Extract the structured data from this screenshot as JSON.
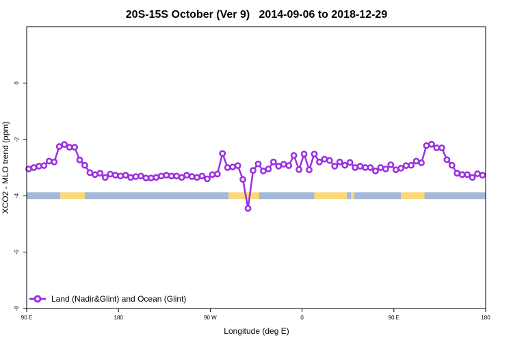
{
  "chart_data": {
    "type": "line",
    "title": "20S-15S October (Ver 9)   2014-09-06 to 2018-12-29",
    "xlabel": "Longitude (deg E)",
    "ylabel": "XCO2 - MLO trend (ppm)",
    "x_ticks": [
      {
        "value": 90,
        "label": "90 E"
      },
      {
        "value": 180,
        "label": "180"
      },
      {
        "value": 270,
        "label": "90 W"
      },
      {
        "value": 360,
        "label": "0"
      },
      {
        "value": 450,
        "label": "90 E"
      },
      {
        "value": 540,
        "label": "180"
      }
    ],
    "y_ticks": [
      {
        "value": -8,
        "label": "-8"
      },
      {
        "value": -6,
        "label": "-6"
      },
      {
        "value": -4,
        "label": "-4"
      },
      {
        "value": -2,
        "label": "-2"
      },
      {
        "value": 0,
        "label": "0"
      }
    ],
    "xlim": [
      90,
      540
    ],
    "ylim": [
      -8,
      2
    ],
    "grid": false,
    "legend": {
      "position": "bottom-left",
      "entries": [
        "Land (Nadir&Glint) and Ocean (Glint)"
      ]
    },
    "colors": {
      "series": "#9b30e0",
      "ocean": "#a4b8d8",
      "land": "#fcd87a"
    },
    "land_ocean_band": {
      "y": -4,
      "land_segments_x": [
        [
          123,
          147
        ],
        [
          288,
          318
        ],
        [
          372,
          404
        ],
        [
          408,
          411
        ],
        [
          457,
          480
        ]
      ],
      "ocean_segments_x": [
        [
          90,
          123
        ],
        [
          147,
          288
        ],
        [
          318,
          372
        ],
        [
          404,
          408
        ],
        [
          411,
          457
        ],
        [
          480,
          540
        ]
      ]
    },
    "series": [
      {
        "name": "Land (Nadir&Glint) and Ocean (Glint)",
        "x": [
          92,
          97,
          102,
          107,
          112,
          117,
          122,
          127,
          132,
          137,
          142,
          147,
          152,
          157,
          162,
          167,
          172,
          177,
          182,
          187,
          192,
          197,
          202,
          207,
          212,
          217,
          222,
          227,
          232,
          237,
          242,
          247,
          252,
          257,
          262,
          267,
          272,
          277,
          282,
          287,
          292,
          297,
          302,
          307,
          312,
          317,
          322,
          327,
          332,
          337,
          342,
          347,
          352,
          357,
          362,
          367,
          372,
          377,
          382,
          387,
          392,
          397,
          402,
          407,
          412,
          417,
          422,
          427,
          432,
          437,
          442,
          447,
          452,
          457,
          462,
          467,
          472,
          477,
          482,
          487,
          492,
          497,
          502,
          507,
          512,
          517,
          522,
          527,
          532,
          537
        ],
        "y": [
          -3.05,
          -3.0,
          -2.95,
          -2.93,
          -2.77,
          -2.8,
          -2.25,
          -2.18,
          -2.28,
          -2.28,
          -2.73,
          -2.92,
          -3.18,
          -3.25,
          -3.2,
          -3.35,
          -3.23,
          -3.27,
          -3.3,
          -3.27,
          -3.35,
          -3.32,
          -3.3,
          -3.37,
          -3.37,
          -3.35,
          -3.3,
          -3.27,
          -3.3,
          -3.3,
          -3.35,
          -3.27,
          -3.32,
          -3.35,
          -3.3,
          -3.4,
          -3.25,
          -3.23,
          -2.5,
          -3.0,
          -2.98,
          -2.93,
          -3.42,
          -4.45,
          -3.1,
          -2.87,
          -3.12,
          -3.05,
          -2.8,
          -2.95,
          -2.88,
          -2.93,
          -2.57,
          -3.07,
          -2.52,
          -3.08,
          -2.52,
          -2.8,
          -2.7,
          -2.75,
          -2.95,
          -2.8,
          -2.92,
          -2.82,
          -3.0,
          -2.95,
          -3.0,
          -3.0,
          -3.12,
          -3.0,
          -3.05,
          -2.9,
          -3.08,
          -3.02,
          -2.93,
          -2.92,
          -2.77,
          -2.83,
          -2.22,
          -2.17,
          -2.3,
          -2.3,
          -2.72,
          -2.92,
          -3.2,
          -3.25,
          -3.25,
          -3.35,
          -3.22,
          -3.27
        ]
      }
    ]
  }
}
